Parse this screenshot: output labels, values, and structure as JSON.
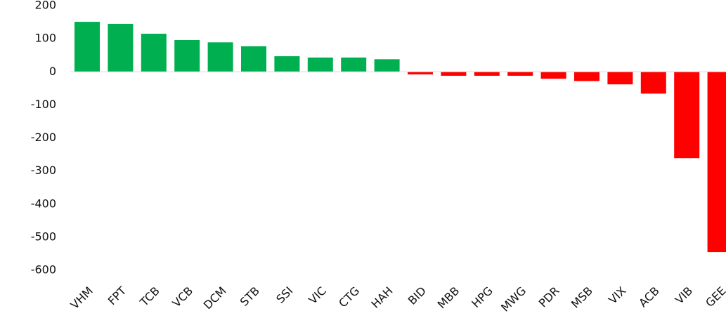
{
  "chart_data": {
    "type": "bar",
    "categories": [
      "VHM",
      "FPT",
      "TCB",
      "VCB",
      "DCM",
      "STB",
      "SSI",
      "VIC",
      "CTG",
      "HAH",
      "BID",
      "MBB",
      "HPG",
      "MWG",
      "PDR",
      "MSB",
      "VIX",
      "ACB",
      "VIB",
      "GEE"
    ],
    "values": [
      151,
      145,
      115,
      96,
      89,
      77,
      47,
      43,
      43,
      38,
      -8,
      -12,
      -12,
      -12,
      -21,
      -28,
      -38,
      -66,
      -261,
      -545
    ],
    "positive_color": "#00b050",
    "negative_color": "#ff0000",
    "ylim": [
      -600,
      200
    ],
    "yticks": [
      -600,
      -500,
      -400,
      -300,
      -200,
      -100,
      0,
      100,
      200
    ],
    "grid": false
  }
}
